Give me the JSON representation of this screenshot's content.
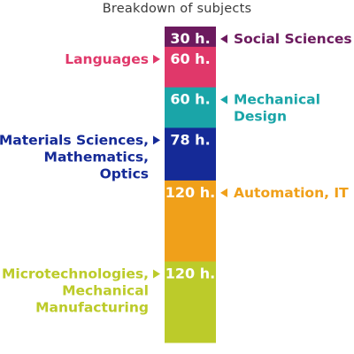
{
  "chart_data": {
    "type": "bar",
    "title": "Breakdown of subjects",
    "orientation": "stacked-vertical",
    "unit": "h.",
    "segments": [
      {
        "category": "Social Sciences",
        "lines": [
          "Social Sciences"
        ],
        "value": 30,
        "value_label": "30 h.",
        "color": "#6c1a5e",
        "side": "right"
      },
      {
        "category": "Languages",
        "lines": [
          "Languages"
        ],
        "value": 60,
        "value_label": "60 h.",
        "color": "#e0386a",
        "side": "left"
      },
      {
        "category": "Mechanical Design",
        "lines": [
          "Mechanical",
          "Design"
        ],
        "value": 60,
        "value_label": "60 h.",
        "color": "#1aa5a8",
        "side": "right"
      },
      {
        "category": "Materials Sciences, Mathematics, Optics",
        "lines": [
          "Materials Sciences,",
          "Mathematics,",
          "Optics"
        ],
        "value": 78,
        "value_label": "78 h.",
        "color": "#152a97",
        "side": "left"
      },
      {
        "category": "Automation, IT",
        "lines": [
          "Automation, IT"
        ],
        "value": 120,
        "value_label": "120 h.",
        "color": "#f0a01a",
        "side": "right"
      },
      {
        "category": "Microtechnologies, Mechanical Manufacturing",
        "lines": [
          "Microtechnologies,",
          "Mechanical",
          "Manufacturing"
        ],
        "value": 120,
        "value_label": "120 h.",
        "color": "#bccb2a",
        "side": "left"
      }
    ],
    "total": 468,
    "grid": false,
    "legend": "none"
  }
}
